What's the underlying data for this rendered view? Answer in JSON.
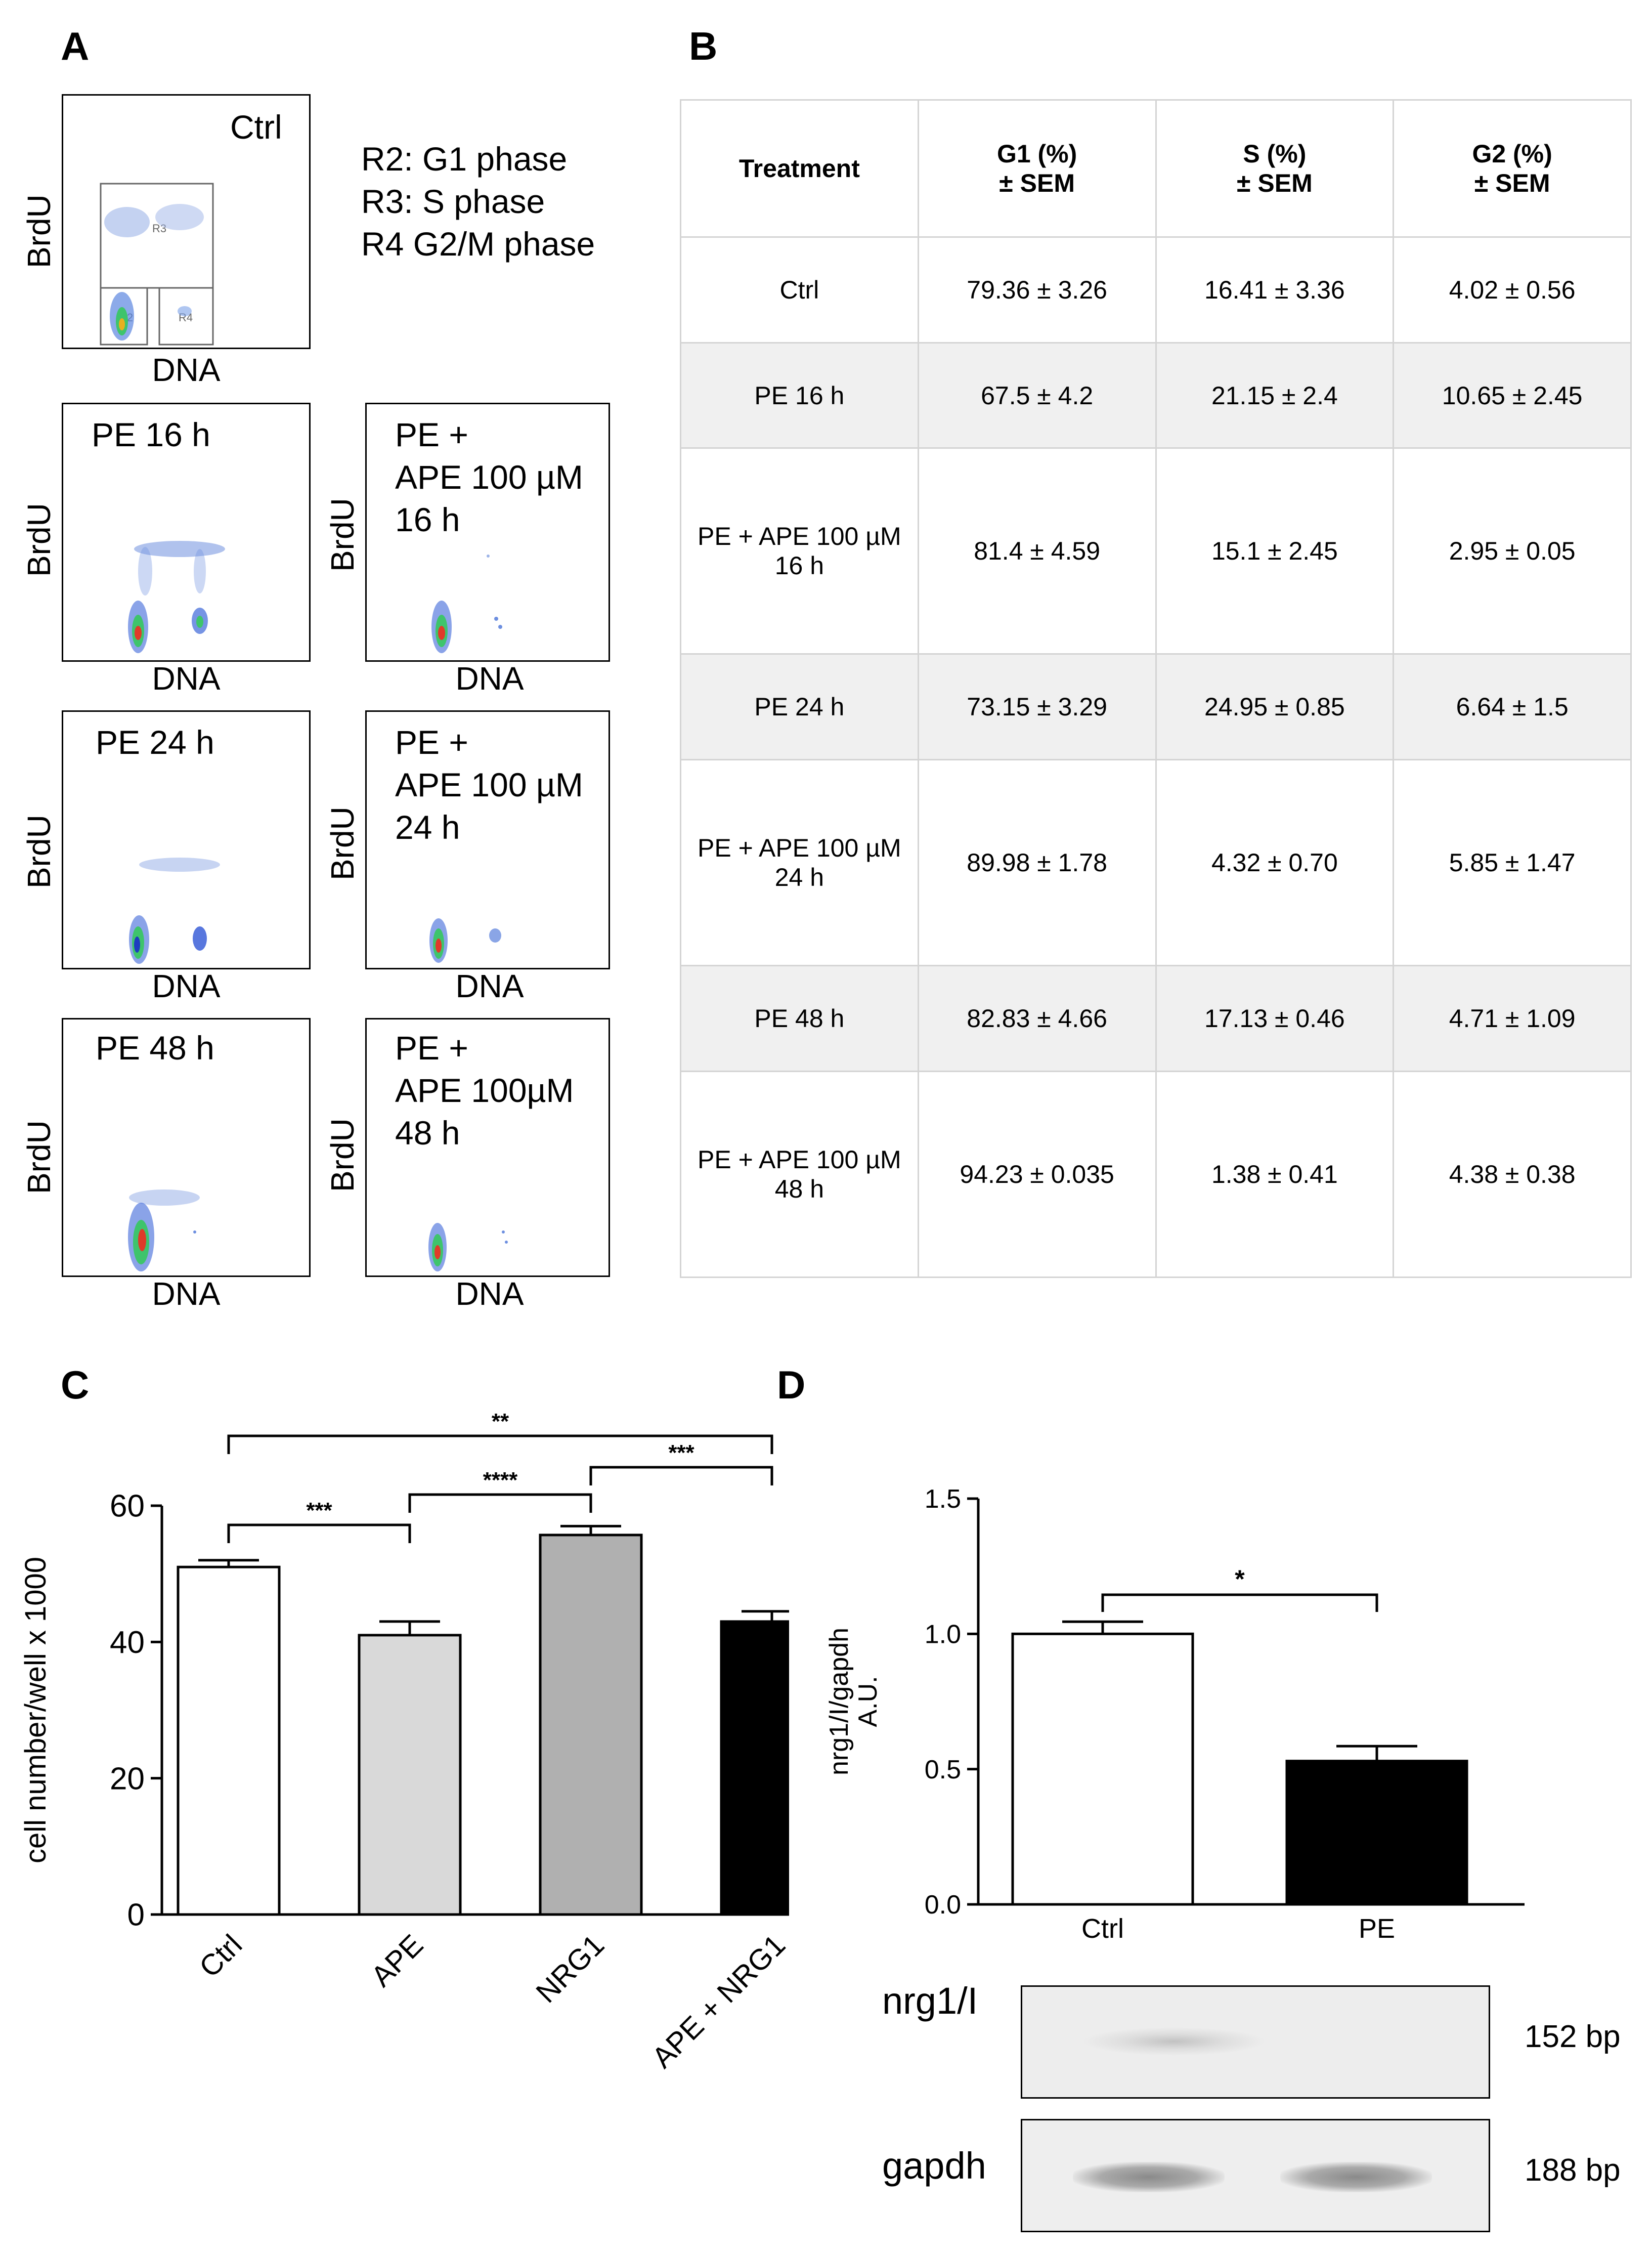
{
  "panels": {
    "a": "A",
    "b": "B",
    "c": "C",
    "d": "D"
  },
  "panel_a": {
    "legend": [
      "R2: G1 phase",
      "R3: S phase",
      "R4 G2/M phase"
    ],
    "axis_x": "DNA",
    "axis_y": "BrdU",
    "gates": {
      "r2": "R2",
      "r3": "R3",
      "r4": "R4"
    },
    "plots": [
      {
        "title": "Ctrl"
      },
      {
        "title": "PE 16 h"
      },
      {
        "title": "PE +\nAPE 100 µM\n16 h"
      },
      {
        "title": "PE 24 h"
      },
      {
        "title": "PE +\nAPE 100 µM\n24 h"
      },
      {
        "title": "PE 48 h"
      },
      {
        "title": "PE +\nAPE 100µM\n48 h"
      }
    ]
  },
  "panel_b": {
    "headers": [
      "Treatment",
      "G1 (%)\n± SEM",
      "S (%)\n± SEM",
      "G2 (%)\n± SEM"
    ],
    "rows": [
      [
        "Ctrl",
        "79.36 ± 3.26",
        "16.41 ± 3.36",
        "4.02 ± 0.56"
      ],
      [
        "PE 16 h",
        "67.5 ± 4.2",
        "21.15 ± 2.4",
        "10.65 ± 2.45"
      ],
      [
        "PE + APE 100 µM\n16 h",
        "81.4 ± 4.59",
        "15.1 ± 2.45",
        "2.95 ± 0.05"
      ],
      [
        "PE 24 h",
        "73.15 ± 3.29",
        "24.95 ± 0.85",
        "6.64 ± 1.5"
      ],
      [
        "PE + APE 100 µM\n24 h",
        "89.98 ± 1.78",
        "4.32 ± 0.70",
        "5.85 ± 1.47"
      ],
      [
        "PE 48 h",
        "82.83 ± 4.66",
        "17.13 ± 0.46",
        "4.71 ± 1.09"
      ],
      [
        "PE + APE 100 µM\n48 h",
        "94.23 ± 0.035",
        "1.38 ± 0.41",
        "4.38 ± 0.38"
      ]
    ]
  },
  "chart_data": [
    {
      "type": "bar",
      "panel": "C",
      "categories": [
        "Ctrl",
        "APE",
        "NRG1",
        "APE + NRG1"
      ],
      "values": [
        51,
        41,
        55.7,
        43
      ],
      "errors": [
        1,
        2,
        1.3,
        1.5
      ],
      "colors": [
        "#ffffff",
        "#d9d9d9",
        "#b0b0b0",
        "#000000"
      ],
      "ylabel": "cell number/well x 1000",
      "ylim": [
        0,
        60
      ],
      "yticks": [
        "0",
        "20",
        "40",
        "60"
      ],
      "significance": [
        {
          "pair": [
            "Ctrl",
            "APE"
          ],
          "label": "***"
        },
        {
          "pair": [
            "APE",
            "NRG1"
          ],
          "label": "****"
        },
        {
          "pair": [
            "NRG1",
            "APE + NRG1"
          ],
          "label": "***"
        },
        {
          "pair": [
            "Ctrl",
            "APE + NRG1"
          ],
          "label": "**"
        }
      ]
    },
    {
      "type": "bar",
      "panel": "D",
      "categories": [
        "Ctrl",
        "PE"
      ],
      "values": [
        1.0,
        0.53
      ],
      "errors": [
        0.045,
        0.055
      ],
      "colors": [
        "#ffffff",
        "#000000"
      ],
      "ylabel": "nrg1/I/gapdh\nA.U.",
      "ylim": [
        0,
        1.5
      ],
      "yticks": [
        "0.0",
        "0.5",
        "1.0",
        "1.5"
      ],
      "significance": [
        {
          "pair": [
            "Ctrl",
            "PE"
          ],
          "label": "*"
        }
      ]
    }
  ],
  "panel_d_gel": {
    "rows": [
      {
        "label": "nrg1/I",
        "size": "152 bp"
      },
      {
        "label": "gapdh",
        "size": "188 bp"
      }
    ]
  }
}
